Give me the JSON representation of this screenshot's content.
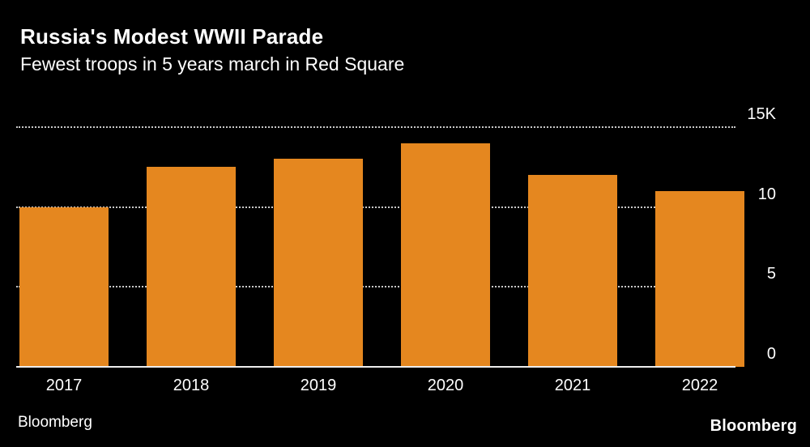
{
  "header": {
    "title": "Russia's Modest WWII Parade",
    "subtitle": "Fewest troops in 5 years march in Red Square"
  },
  "footer": {
    "source": "Bloomberg",
    "logo": "Bloomberg"
  },
  "colors": {
    "background": "#000000",
    "bar": "#E5871F",
    "text": "#FFFFFF",
    "gridline": "#C9C9C9"
  },
  "chart_data": {
    "type": "bar",
    "title": "Russia's Modest WWII Parade",
    "subtitle": "Fewest troops in 5 years march in Red Square",
    "categories": [
      "2017",
      "2018",
      "2019",
      "2020",
      "2021",
      "2022"
    ],
    "values": [
      10000,
      12500,
      13000,
      14000,
      12000,
      11000
    ],
    "unit": "troops",
    "xlabel": "",
    "ylabel": "",
    "ylim": [
      0,
      15000
    ],
    "yticks": [
      {
        "value": 0,
        "label": "0"
      },
      {
        "value": 5000,
        "label": "5"
      },
      {
        "value": 10000,
        "label": "10"
      },
      {
        "value": 15000,
        "label": "15K"
      }
    ],
    "grid": "horizontal-dotted",
    "legend": "none",
    "source": "Bloomberg"
  }
}
